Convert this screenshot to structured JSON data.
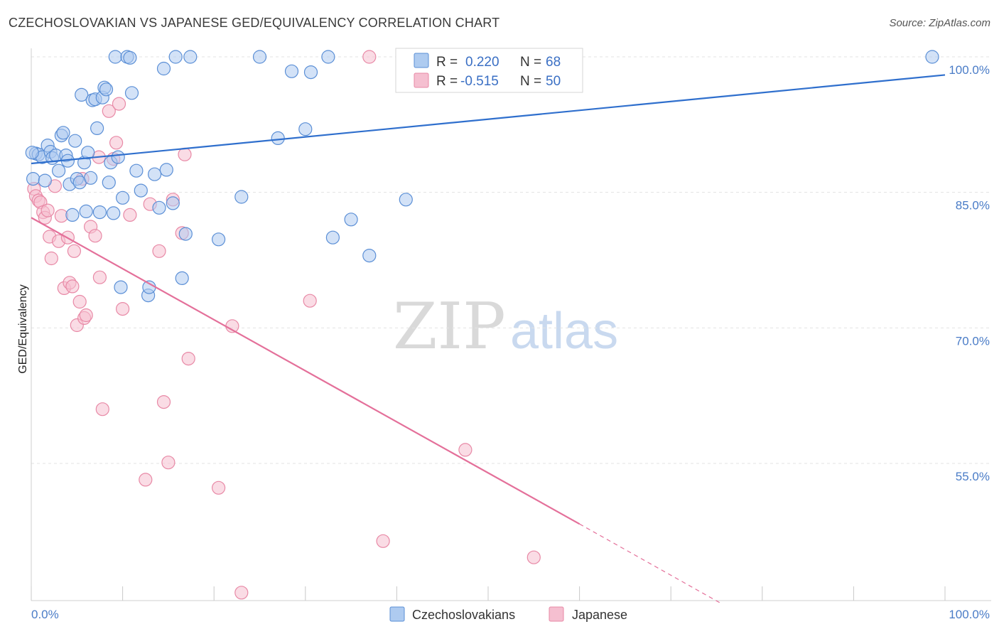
{
  "title": "CZECHOSLOVAKIAN VS JAPANESE GED/EQUIVALENCY CORRELATION CHART",
  "source": "Source: ZipAtlas.com",
  "colors": {
    "blue_fill": "#aecbf0",
    "blue_stroke": "#5b8fd6",
    "blue_line": "#2f6fcd",
    "pink_fill": "#f5bfd0",
    "pink_stroke": "#e889a6",
    "pink_line": "#e4709a",
    "tick_label": "#4a7cc7",
    "grid": "#e3e3e3"
  },
  "watermark": {
    "part1": "ZIP",
    "part2": "atlas"
  },
  "legend": {
    "rows": [
      {
        "r_label": "R =",
        "r_value": "0.220",
        "n_label": "N =",
        "n_value": "68",
        "series": "blue"
      },
      {
        "r_label": "R =",
        "r_value": "-0.515",
        "n_label": "N =",
        "n_value": "50",
        "series": "pink"
      }
    ]
  },
  "bottom_legend": [
    "Czechoslovakians",
    "Japanese"
  ],
  "chart_data": {
    "type": "scatter",
    "title": "CZECHOSLOVAKIAN VS JAPANESE GED/EQUIVALENCY CORRELATION CHART",
    "xlabel": "",
    "ylabel": "GED/Equivalency",
    "xlim": [
      0,
      100
    ],
    "ylim": [
      40,
      102
    ],
    "x_tick_labels": [
      "0.0%",
      "100.0%"
    ],
    "y_ticks": [
      100,
      85,
      70,
      55
    ],
    "y_tick_labels": [
      "100.0%",
      "85.0%",
      "70.0%",
      "55.0%"
    ],
    "series": [
      {
        "name": "Czechoslovakians",
        "color": "blue",
        "r": 0.22,
        "n": 68,
        "trend": {
          "x": [
            0,
            100
          ],
          "y": [
            88.2,
            98.0
          ]
        },
        "points": [
          [
            0.2,
            86.5
          ],
          [
            0.5,
            89.3
          ],
          [
            0.8,
            89.2
          ],
          [
            1.2,
            88.9
          ],
          [
            1.5,
            86.3
          ],
          [
            1.8,
            90.2
          ],
          [
            2.1,
            89.5
          ],
          [
            2.3,
            88.8
          ],
          [
            2.7,
            89.1
          ],
          [
            3.0,
            87.4
          ],
          [
            3.3,
            91.3
          ],
          [
            3.5,
            91.6
          ],
          [
            3.8,
            89.1
          ],
          [
            4.0,
            88.5
          ],
          [
            4.2,
            85.9
          ],
          [
            4.5,
            82.5
          ],
          [
            4.8,
            90.7
          ],
          [
            5.0,
            86.5
          ],
          [
            5.3,
            86.1
          ],
          [
            5.5,
            95.8
          ],
          [
            5.8,
            88.3
          ],
          [
            6.0,
            82.9
          ],
          [
            6.2,
            89.4
          ],
          [
            6.5,
            86.6
          ],
          [
            6.7,
            95.2
          ],
          [
            7.0,
            95.3
          ],
          [
            7.2,
            92.1
          ],
          [
            7.5,
            82.8
          ],
          [
            7.8,
            95.5
          ],
          [
            8.0,
            96.6
          ],
          [
            8.2,
            96.4
          ],
          [
            8.5,
            86.1
          ],
          [
            8.7,
            88.3
          ],
          [
            9.0,
            82.7
          ],
          [
            9.2,
            100.0
          ],
          [
            9.5,
            88.9
          ],
          [
            9.8,
            74.5
          ],
          [
            10.0,
            84.4
          ],
          [
            10.5,
            100.0
          ],
          [
            10.8,
            99.9
          ],
          [
            11.0,
            96.0
          ],
          [
            11.5,
            87.4
          ],
          [
            12.0,
            85.2
          ],
          [
            12.8,
            73.6
          ],
          [
            13.5,
            87.0
          ],
          [
            14.0,
            83.3
          ],
          [
            14.5,
            98.7
          ],
          [
            14.8,
            87.5
          ],
          [
            15.5,
            83.8
          ],
          [
            15.8,
            100.0
          ],
          [
            16.5,
            75.5
          ],
          [
            16.9,
            80.4
          ],
          [
            17.4,
            100.0
          ],
          [
            20.5,
            79.8
          ],
          [
            23.0,
            84.5
          ],
          [
            25.0,
            100.0
          ],
          [
            27.0,
            91.0
          ],
          [
            28.5,
            98.4
          ],
          [
            30.0,
            92.0
          ],
          [
            30.6,
            98.3
          ],
          [
            32.5,
            100.0
          ],
          [
            33.0,
            80.0
          ],
          [
            35.0,
            82.0
          ],
          [
            37.0,
            78.0
          ],
          [
            41.0,
            84.2
          ],
          [
            98.6,
            100.0
          ],
          [
            0.1,
            89.4
          ],
          [
            12.9,
            74.5
          ]
        ]
      },
      {
        "name": "Japanese",
        "color": "pink",
        "r": -0.515,
        "n": 50,
        "trend": {
          "x": [
            0,
            60
          ],
          "y": [
            82.2,
            48.3
          ]
        },
        "trend_dashed": {
          "x": [
            60,
            75.5
          ],
          "y": [
            48.3,
            39.5
          ]
        },
        "points": [
          [
            0.3,
            85.4
          ],
          [
            0.5,
            84.6
          ],
          [
            0.8,
            84.1
          ],
          [
            1.0,
            83.9
          ],
          [
            1.3,
            82.8
          ],
          [
            1.5,
            82.2
          ],
          [
            1.8,
            83.0
          ],
          [
            2.0,
            80.1
          ],
          [
            2.2,
            77.7
          ],
          [
            2.6,
            85.7
          ],
          [
            3.0,
            79.6
          ],
          [
            3.3,
            82.4
          ],
          [
            3.6,
            74.4
          ],
          [
            4.0,
            80.0
          ],
          [
            4.2,
            75.0
          ],
          [
            4.5,
            74.6
          ],
          [
            4.7,
            78.5
          ],
          [
            5.0,
            70.3
          ],
          [
            5.3,
            72.9
          ],
          [
            5.6,
            86.5
          ],
          [
            5.8,
            71.1
          ],
          [
            6.0,
            71.4
          ],
          [
            6.5,
            81.2
          ],
          [
            7.0,
            80.2
          ],
          [
            7.5,
            75.6
          ],
          [
            7.8,
            61.0
          ],
          [
            8.5,
            94.0
          ],
          [
            9.0,
            88.7
          ],
          [
            9.3,
            90.5
          ],
          [
            9.6,
            94.8
          ],
          [
            10.0,
            72.1
          ],
          [
            10.8,
            82.5
          ],
          [
            12.5,
            53.2
          ],
          [
            13.0,
            83.7
          ],
          [
            14.0,
            78.5
          ],
          [
            14.5,
            61.8
          ],
          [
            15.0,
            55.1
          ],
          [
            15.5,
            84.2
          ],
          [
            16.5,
            80.5
          ],
          [
            16.8,
            89.2
          ],
          [
            17.2,
            66.6
          ],
          [
            20.5,
            52.3
          ],
          [
            22.0,
            70.2
          ],
          [
            23.0,
            40.7
          ],
          [
            30.5,
            73.0
          ],
          [
            37.0,
            100.0
          ],
          [
            38.5,
            46.4
          ],
          [
            47.5,
            56.5
          ],
          [
            55.0,
            44.6
          ],
          [
            7.4,
            88.9
          ]
        ]
      }
    ]
  }
}
